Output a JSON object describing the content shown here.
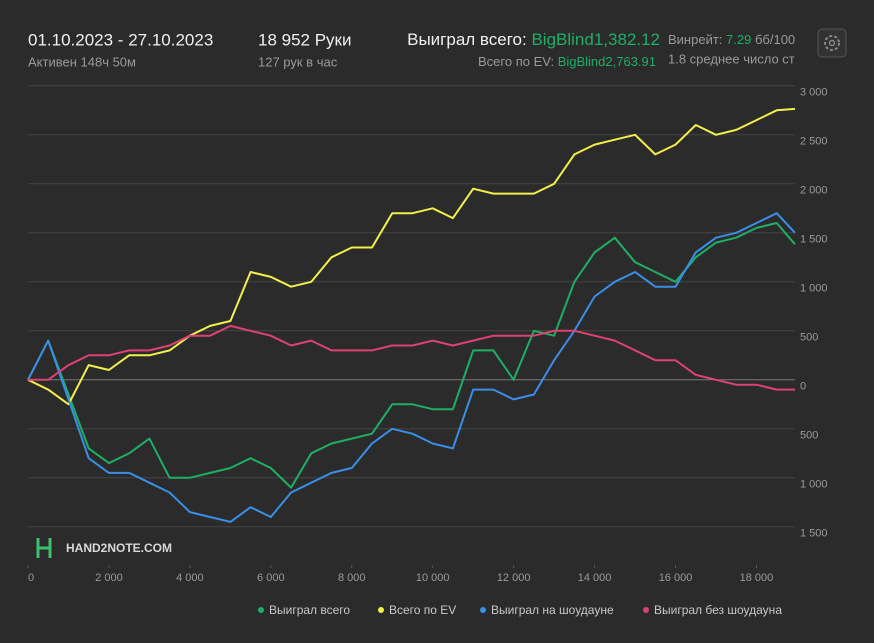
{
  "header": {
    "dates": "01.10.2023 - 27.10.2023",
    "active": "Активен 148ч 50м",
    "hands": "18 952 Руки",
    "rate": "127 рук в час",
    "won_label": "Выиграл всего:",
    "won_value": "BigBlind1,382.12",
    "ev_label": "Всего по EV:",
    "ev_value": "BigBlind2,763.91",
    "winrate_label": "Винрейт:",
    "winrate_value": "7.29",
    "winrate_unit": "бб/100",
    "avg": "1.8 среднее число ст",
    "logo": "HAND2NOTE.COM"
  },
  "chart_data": {
    "type": "line",
    "x": [
      0,
      500,
      1000,
      1500,
      2000,
      2500,
      3000,
      3500,
      4000,
      4500,
      5000,
      5500,
      6000,
      6500,
      7000,
      7500,
      8000,
      8500,
      9000,
      9500,
      10000,
      10500,
      11000,
      11500,
      12000,
      12500,
      13000,
      13500,
      14000,
      14500,
      15000,
      15500,
      16000,
      16500,
      17000,
      17500,
      18000,
      18500,
      18952
    ],
    "xlim": [
      0,
      18952
    ],
    "xticks": [
      0,
      {
        "value": 2000,
        "label": "2 000"
      },
      {
        "value": 4000,
        "label": "4 000"
      },
      {
        "value": 6000,
        "label": "6 000"
      },
      {
        "value": 8000,
        "label": "8 000"
      },
      {
        "value": 10000,
        "label": "10 000"
      },
      {
        "value": 12000,
        "label": "12 000"
      },
      {
        "value": 14000,
        "label": "14 000"
      },
      {
        "value": 16000,
        "label": "16 000"
      },
      {
        "value": 18000,
        "label": "18 000"
      }
    ],
    "ylim": [
      -1890,
      3110
    ],
    "yticks": [
      {
        "value": -1500,
        "label": "1 500"
      },
      {
        "value": -1000,
        "label": "1 000"
      },
      {
        "value": -500,
        "label": "500"
      },
      0,
      500,
      {
        "value": 1000,
        "label": "1 000"
      },
      {
        "value": 1500,
        "label": "1 500"
      },
      {
        "value": 2000,
        "label": "2 000"
      },
      {
        "value": 2500,
        "label": "2 500"
      },
      {
        "value": 3000,
        "label": "3 000"
      }
    ],
    "grid": true,
    "series": [
      {
        "name": "Выиграл всего",
        "color": "#1fae66",
        "values": [
          0,
          400,
          -150,
          -700,
          -850,
          -750,
          -600,
          -1000,
          -1000,
          -950,
          -900,
          -800,
          -900,
          -1100,
          -750,
          -650,
          -600,
          -550,
          -250,
          -250,
          -300,
          -300,
          300,
          300,
          0,
          500,
          450,
          1000,
          1300,
          1450,
          1200,
          1100,
          1000,
          1250,
          1400,
          1450,
          1550,
          1600,
          1382.12
        ]
      },
      {
        "name": "Всего по EV",
        "color": "#f2f04a",
        "values": [
          0,
          -100,
          -250,
          150,
          100,
          250,
          250,
          300,
          450,
          550,
          600,
          1100,
          1050,
          950,
          1000,
          1250,
          1350,
          1350,
          1700,
          1700,
          1750,
          1650,
          1950,
          1900,
          1900,
          1900,
          2000,
          2300,
          2400,
          2450,
          2500,
          2300,
          2400,
          2600,
          2500,
          2550,
          2650,
          2750,
          2763.91
        ]
      },
      {
        "name": "Выиграл на шоудауне",
        "color": "#3a8ee6",
        "values": [
          0,
          400,
          -200,
          -800,
          -950,
          -950,
          -1050,
          -1150,
          -1350,
          -1400,
          -1450,
          -1300,
          -1400,
          -1150,
          -1050,
          -950,
          -900,
          -650,
          -500,
          -550,
          -650,
          -700,
          -100,
          -100,
          -200,
          -150,
          200,
          500,
          850,
          1000,
          1100,
          950,
          950,
          1300,
          1450,
          1500,
          1600,
          1700,
          1500
        ]
      },
      {
        "name": "Выиграл без шоудауна",
        "color": "#de4272",
        "values": [
          0,
          0,
          150,
          250,
          250,
          300,
          300,
          350,
          450,
          450,
          550,
          500,
          450,
          350,
          400,
          300,
          300,
          300,
          350,
          350,
          400,
          350,
          400,
          450,
          450,
          450,
          500,
          500,
          450,
          400,
          300,
          200,
          200,
          50,
          0,
          -50,
          -50,
          -100,
          -100
        ]
      }
    ]
  }
}
